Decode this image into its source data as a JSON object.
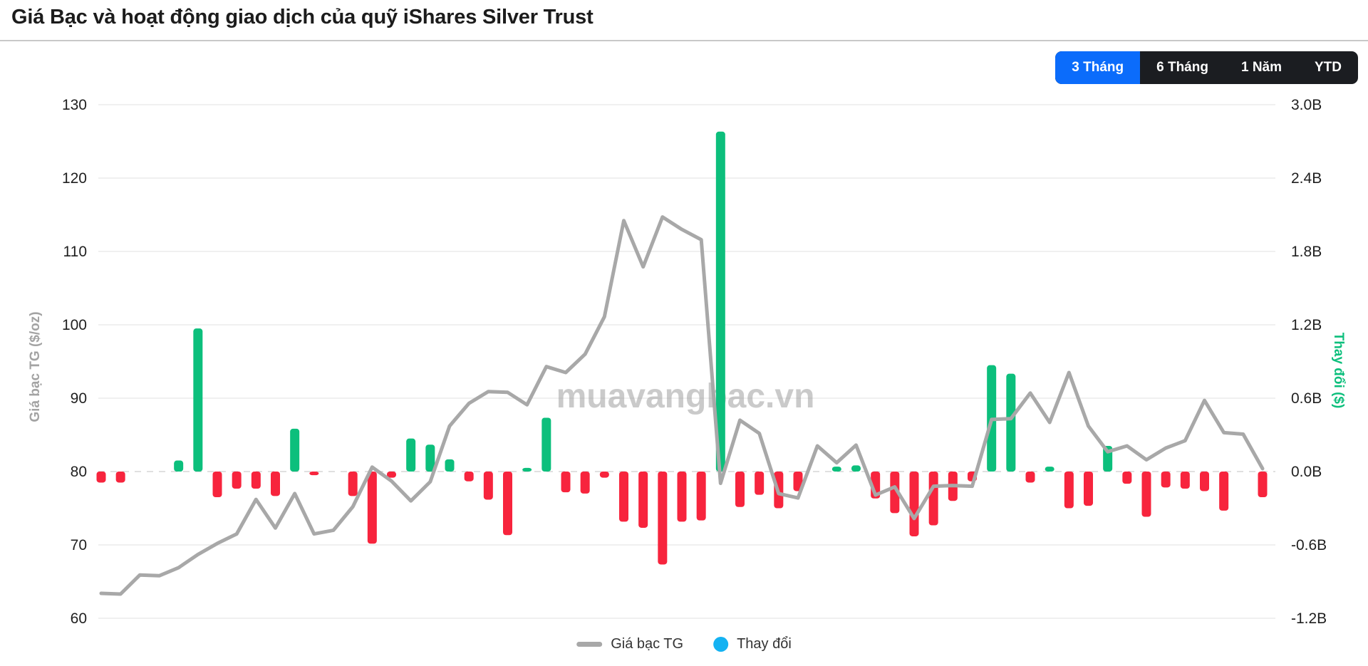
{
  "header": {
    "title": "Giá Bạc và hoạt động giao dịch của quỹ iShares Silver Trust",
    "range_buttons": [
      {
        "label": "3 Tháng",
        "active": true
      },
      {
        "label": "6 Tháng",
        "active": false
      },
      {
        "label": "1 Năm",
        "active": false
      },
      {
        "label": "YTD",
        "active": false
      }
    ],
    "active_button_color": "#0b6cfb",
    "button_group_color": "#1b1d21"
  },
  "watermark": "muavangbac.vn",
  "legend": {
    "price_label": "Giá bạc TG",
    "change_label": "Thay đổi",
    "change_marker_color": "#14b2f2",
    "price_marker_color": "#a8a8a8"
  },
  "chart_data": {
    "type": "combo",
    "x_unit": "daily trading sessions over 3 months (no date labels shown on x-axis)",
    "grid": true,
    "legend_position": "bottom-center",
    "left_axis": {
      "title": "Giá bạc TG ($/oz)",
      "range": [
        60,
        130
      ],
      "ticks": [
        130,
        120,
        110,
        100,
        90,
        80,
        70,
        60
      ]
    },
    "right_axis": {
      "title": "Thay đổi ($)",
      "range_billion": [
        -1.2,
        3.0
      ],
      "tick_labels": [
        "3.0B",
        "2.4B",
        "1.8B",
        "1.2B",
        "0.6B",
        "0.0B",
        "-0.6B",
        "-1.2B"
      ]
    },
    "series": [
      {
        "name": "Giá bạc TG",
        "type": "line",
        "axis": "left",
        "color": "#a8a8a8",
        "values": [
          63.4,
          63.3,
          65.9,
          65.8,
          66.9,
          68.7,
          70.2,
          71.5,
          76.2,
          72.3,
          77.0,
          71.5,
          72.0,
          75.2,
          80.6,
          78.7,
          76.0,
          78.6,
          86.2,
          89.3,
          90.9,
          90.8,
          89.1,
          94.3,
          93.5,
          96.0,
          101.1,
          114.2,
          107.9,
          114.7,
          113.0,
          111.6,
          78.4,
          87.0,
          85.2,
          77.0,
          76.4,
          83.5,
          81.2,
          83.6,
          76.8,
          77.9,
          73.6,
          78.0,
          78.1,
          78.0,
          87.1,
          87.2,
          90.7,
          86.7,
          93.5,
          86.2,
          82.7,
          83.5,
          81.6,
          83.2,
          84.2,
          89.7,
          85.3,
          85.1,
          80.4
        ]
      },
      {
        "name": "Thay đổi",
        "type": "bar",
        "axis": "right",
        "color_positive": "#0cbf7c",
        "color_negative": "#f7243d",
        "values_billion_usd": [
          -0.09,
          -0.09,
          0,
          0,
          0.09,
          1.17,
          -0.21,
          -0.14,
          -0.14,
          -0.2,
          0.35,
          -0.03,
          0,
          -0.2,
          -0.59,
          -0.05,
          0.27,
          0.22,
          0.1,
          -0.08,
          -0.23,
          -0.52,
          0.03,
          0.44,
          -0.17,
          -0.18,
          -0.05,
          -0.41,
          -0.46,
          -0.76,
          -0.41,
          -0.4,
          2.78,
          -0.29,
          -0.19,
          -0.3,
          -0.16,
          0,
          0.04,
          0.05,
          -0.22,
          -0.34,
          -0.53,
          -0.44,
          -0.24,
          -0.08,
          0.87,
          0.8,
          -0.09,
          0.04,
          -0.3,
          -0.28,
          0.21,
          -0.1,
          -0.37,
          -0.13,
          -0.14,
          -0.16,
          -0.32,
          0,
          -0.21
        ]
      }
    ]
  }
}
